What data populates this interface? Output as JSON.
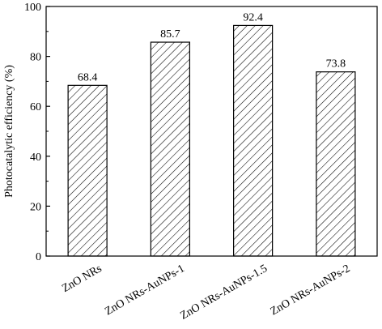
{
  "chart_data": {
    "type": "bar",
    "title": "",
    "xlabel": "",
    "ylabel": "Photocatalytic efficiency (%)",
    "categories": [
      "ZnO NRs",
      "ZnO NRs-AuNPs-1",
      "ZnO NRs-AuNPs-1.5",
      "ZnO NRs-AuNPs-2"
    ],
    "values": [
      68.4,
      85.7,
      92.4,
      73.8
    ],
    "value_labels": [
      "68.4",
      "85.7",
      "92.4",
      "73.8"
    ],
    "ylim": [
      0,
      100
    ],
    "yticks": [
      0,
      20,
      40,
      60,
      80,
      100
    ],
    "ytick_labels": [
      "0",
      "20",
      "40",
      "60",
      "80",
      "100"
    ],
    "bar_fill": "hatched diagonal",
    "colors": {
      "bar_stroke": "#000000",
      "hatch": "#000000",
      "background": "#ffffff"
    },
    "grid": false,
    "legend": "none"
  }
}
